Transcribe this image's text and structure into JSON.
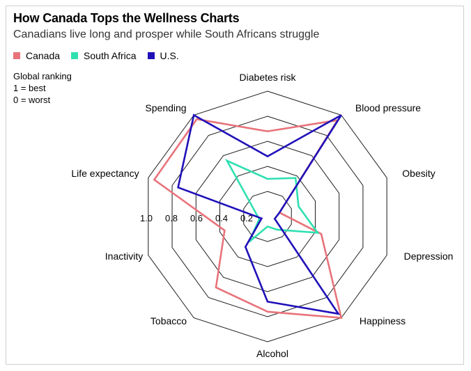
{
  "title": "How Canada Tops the Wellness Charts",
  "subtitle": "Canadians live long and prosper while South Africans struggle",
  "note": [
    "Global ranking",
    "1 = best",
    "0 = worst"
  ],
  "colors": {
    "Canada": "#e8737a",
    "South Africa": "#2ee0b0",
    "U.S.": "#1f10b8",
    "grid": "#1a1a1a"
  },
  "chart_data": {
    "type": "radar",
    "categories": [
      "Diabetes risk",
      "Blood pressure",
      "Obesity",
      "Depression",
      "Happiness",
      "Alcohol",
      "Tobacco",
      "Inactivity",
      "Life expectancy",
      "Spending"
    ],
    "rlim": [
      0,
      1
    ],
    "ticks": [
      "1.0",
      "0.8",
      "0.6",
      "0.4",
      "0.2"
    ],
    "tick_values": [
      1.0,
      0.8,
      0.6,
      0.4,
      0.2
    ],
    "series": [
      {
        "name": "Canada",
        "values": [
          0.68,
          0.95,
          0.1,
          0.45,
          1.0,
          0.76,
          0.7,
          0.36,
          0.95,
          0.96
        ]
      },
      {
        "name": "South Africa",
        "values": [
          0.3,
          0.38,
          0.26,
          0.42,
          0.13,
          0.08,
          0.25,
          0.07,
          0.1,
          0.55
        ]
      },
      {
        "name": "U.S.",
        "values": [
          0.48,
          1.0,
          0.1,
          0.06,
          0.96,
          0.68,
          0.3,
          0.05,
          0.75,
          1.0
        ]
      }
    ]
  }
}
